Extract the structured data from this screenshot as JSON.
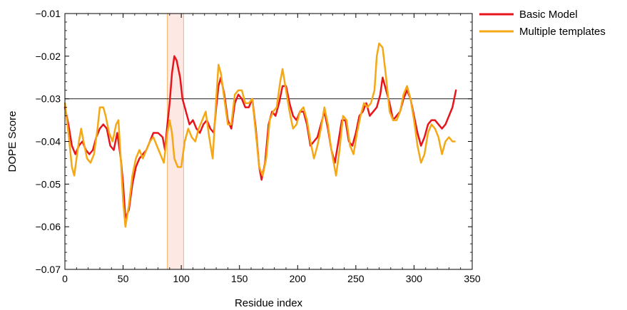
{
  "chart_data": {
    "type": "line",
    "title": "",
    "xlabel": "Residue index",
    "ylabel": "DOPE Score",
    "xlim": [
      0,
      350
    ],
    "ylim": [
      -0.07,
      -0.01
    ],
    "xticks": [
      0,
      50,
      100,
      150,
      200,
      250,
      300,
      350
    ],
    "xtick_labels": [
      "0",
      "50",
      "100",
      "150",
      "200",
      "250",
      "300",
      "350"
    ],
    "yticks": [
      -0.07,
      -0.06,
      -0.05,
      -0.04,
      -0.03,
      -0.02,
      -0.01
    ],
    "ytick_labels": [
      "−0.07",
      "−0.06",
      "−0.05",
      "−0.04",
      "−0.03",
      "−0.02",
      "−0.01"
    ],
    "reference_line": {
      "y": -0.03,
      "color": "#000000"
    },
    "highlight_region": {
      "x": [
        88,
        102
      ],
      "fill": "#fde8e4",
      "stroke": "#f5b56e"
    },
    "legend_position": "top-right outside",
    "series": [
      {
        "name": "Basic Model",
        "color": "#e8141b",
        "points": [
          [
            0,
            -0.032
          ],
          [
            3,
            -0.036
          ],
          [
            6,
            -0.041
          ],
          [
            9,
            -0.043
          ],
          [
            12,
            -0.041
          ],
          [
            15,
            -0.04
          ],
          [
            18,
            -0.042
          ],
          [
            21,
            -0.043
          ],
          [
            24,
            -0.042
          ],
          [
            27,
            -0.039
          ],
          [
            30,
            -0.037
          ],
          [
            33,
            -0.036
          ],
          [
            36,
            -0.037
          ],
          [
            39,
            -0.041
          ],
          [
            42,
            -0.042
          ],
          [
            45,
            -0.038
          ],
          [
            48,
            -0.044
          ],
          [
            50,
            -0.05
          ],
          [
            52,
            -0.058
          ],
          [
            55,
            -0.056
          ],
          [
            58,
            -0.05
          ],
          [
            61,
            -0.046
          ],
          [
            64,
            -0.044
          ],
          [
            67,
            -0.043
          ],
          [
            70,
            -0.042
          ],
          [
            73,
            -0.04
          ],
          [
            76,
            -0.038
          ],
          [
            80,
            -0.038
          ],
          [
            84,
            -0.039
          ],
          [
            86,
            -0.042
          ],
          [
            88,
            -0.036
          ],
          [
            90,
            -0.031
          ],
          [
            92,
            -0.024
          ],
          [
            94,
            -0.02
          ],
          [
            96,
            -0.021
          ],
          [
            99,
            -0.025
          ],
          [
            101,
            -0.03
          ],
          [
            104,
            -0.033
          ],
          [
            107,
            -0.036
          ],
          [
            110,
            -0.035
          ],
          [
            113,
            -0.037
          ],
          [
            116,
            -0.038
          ],
          [
            119,
            -0.036
          ],
          [
            122,
            -0.035
          ],
          [
            125,
            -0.037
          ],
          [
            128,
            -0.038
          ],
          [
            130,
            -0.032
          ],
          [
            132,
            -0.027
          ],
          [
            134,
            -0.025
          ],
          [
            137,
            -0.029
          ],
          [
            140,
            -0.035
          ],
          [
            143,
            -0.037
          ],
          [
            146,
            -0.031
          ],
          [
            149,
            -0.029
          ],
          [
            152,
            -0.03
          ],
          [
            155,
            -0.032
          ],
          [
            158,
            -0.032
          ],
          [
            161,
            -0.03
          ],
          [
            164,
            -0.037
          ],
          [
            167,
            -0.046
          ],
          [
            169,
            -0.049
          ],
          [
            172,
            -0.045
          ],
          [
            175,
            -0.036
          ],
          [
            178,
            -0.033
          ],
          [
            181,
            -0.034
          ],
          [
            184,
            -0.031
          ],
          [
            187,
            -0.027
          ],
          [
            190,
            -0.027
          ],
          [
            193,
            -0.031
          ],
          [
            196,
            -0.034
          ],
          [
            199,
            -0.035
          ],
          [
            202,
            -0.033
          ],
          [
            205,
            -0.033
          ],
          [
            208,
            -0.036
          ],
          [
            211,
            -0.041
          ],
          [
            214,
            -0.04
          ],
          [
            217,
            -0.039
          ],
          [
            220,
            -0.036
          ],
          [
            223,
            -0.033
          ],
          [
            226,
            -0.037
          ],
          [
            229,
            -0.042
          ],
          [
            232,
            -0.045
          ],
          [
            235,
            -0.04
          ],
          [
            238,
            -0.035
          ],
          [
            241,
            -0.035
          ],
          [
            244,
            -0.04
          ],
          [
            247,
            -0.041
          ],
          [
            250,
            -0.038
          ],
          [
            253,
            -0.034
          ],
          [
            256,
            -0.033
          ],
          [
            259,
            -0.031
          ],
          [
            262,
            -0.034
          ],
          [
            265,
            -0.033
          ],
          [
            268,
            -0.032
          ],
          [
            271,
            -0.029
          ],
          [
            273,
            -0.025
          ],
          [
            276,
            -0.028
          ],
          [
            279,
            -0.031
          ],
          [
            282,
            -0.035
          ],
          [
            285,
            -0.034
          ],
          [
            288,
            -0.033
          ],
          [
            291,
            -0.03
          ],
          [
            294,
            -0.028
          ],
          [
            297,
            -0.03
          ],
          [
            300,
            -0.034
          ],
          [
            303,
            -0.038
          ],
          [
            306,
            -0.041
          ],
          [
            309,
            -0.039
          ],
          [
            312,
            -0.036
          ],
          [
            315,
            -0.035
          ],
          [
            318,
            -0.035
          ],
          [
            321,
            -0.036
          ],
          [
            324,
            -0.037
          ],
          [
            327,
            -0.036
          ],
          [
            330,
            -0.034
          ],
          [
            333,
            -0.032
          ],
          [
            336,
            -0.028
          ]
        ]
      },
      {
        "name": "Multiple templates",
        "color": "#f4a815",
        "points": [
          [
            0,
            -0.031
          ],
          [
            3,
            -0.038
          ],
          [
            6,
            -0.046
          ],
          [
            8,
            -0.048
          ],
          [
            10,
            -0.044
          ],
          [
            12,
            -0.04
          ],
          [
            14,
            -0.037
          ],
          [
            16,
            -0.04
          ],
          [
            19,
            -0.044
          ],
          [
            22,
            -0.045
          ],
          [
            25,
            -0.043
          ],
          [
            28,
            -0.037
          ],
          [
            30,
            -0.032
          ],
          [
            33,
            -0.032
          ],
          [
            35,
            -0.034
          ],
          [
            38,
            -0.038
          ],
          [
            41,
            -0.04
          ],
          [
            44,
            -0.036
          ],
          [
            46,
            -0.035
          ],
          [
            48,
            -0.044
          ],
          [
            50,
            -0.054
          ],
          [
            52,
            -0.06
          ],
          [
            55,
            -0.055
          ],
          [
            58,
            -0.048
          ],
          [
            61,
            -0.044
          ],
          [
            64,
            -0.042
          ],
          [
            67,
            -0.044
          ],
          [
            70,
            -0.042
          ],
          [
            73,
            -0.04
          ],
          [
            76,
            -0.039
          ],
          [
            79,
            -0.041
          ],
          [
            82,
            -0.043
          ],
          [
            85,
            -0.045
          ],
          [
            88,
            -0.038
          ],
          [
            90,
            -0.035
          ],
          [
            92,
            -0.038
          ],
          [
            94,
            -0.044
          ],
          [
            97,
            -0.046
          ],
          [
            100,
            -0.046
          ],
          [
            103,
            -0.04
          ],
          [
            106,
            -0.037
          ],
          [
            109,
            -0.039
          ],
          [
            112,
            -0.04
          ],
          [
            115,
            -0.037
          ],
          [
            118,
            -0.035
          ],
          [
            121,
            -0.033
          ],
          [
            124,
            -0.039
          ],
          [
            127,
            -0.044
          ],
          [
            130,
            -0.03
          ],
          [
            132,
            -0.022
          ],
          [
            134,
            -0.024
          ],
          [
            137,
            -0.03
          ],
          [
            140,
            -0.036
          ],
          [
            143,
            -0.036
          ],
          [
            146,
            -0.029
          ],
          [
            149,
            -0.028
          ],
          [
            152,
            -0.028
          ],
          [
            155,
            -0.031
          ],
          [
            158,
            -0.031
          ],
          [
            161,
            -0.03
          ],
          [
            164,
            -0.038
          ],
          [
            167,
            -0.046
          ],
          [
            170,
            -0.048
          ],
          [
            173,
            -0.044
          ],
          [
            176,
            -0.035
          ],
          [
            179,
            -0.033
          ],
          [
            182,
            -0.032
          ],
          [
            185,
            -0.026
          ],
          [
            187,
            -0.023
          ],
          [
            190,
            -0.028
          ],
          [
            193,
            -0.033
          ],
          [
            196,
            -0.037
          ],
          [
            199,
            -0.036
          ],
          [
            202,
            -0.033
          ],
          [
            205,
            -0.032
          ],
          [
            208,
            -0.035
          ],
          [
            211,
            -0.04
          ],
          [
            214,
            -0.044
          ],
          [
            217,
            -0.041
          ],
          [
            220,
            -0.037
          ],
          [
            223,
            -0.032
          ],
          [
            226,
            -0.036
          ],
          [
            229,
            -0.042
          ],
          [
            233,
            -0.048
          ],
          [
            236,
            -0.042
          ],
          [
            239,
            -0.034
          ],
          [
            242,
            -0.035
          ],
          [
            245,
            -0.041
          ],
          [
            248,
            -0.043
          ],
          [
            251,
            -0.038
          ],
          [
            254,
            -0.034
          ],
          [
            257,
            -0.031
          ],
          [
            260,
            -0.032
          ],
          [
            263,
            -0.031
          ],
          [
            266,
            -0.028
          ],
          [
            268,
            -0.02
          ],
          [
            270,
            -0.017
          ],
          [
            273,
            -0.018
          ],
          [
            276,
            -0.025
          ],
          [
            279,
            -0.033
          ],
          [
            282,
            -0.035
          ],
          [
            285,
            -0.035
          ],
          [
            288,
            -0.033
          ],
          [
            291,
            -0.029
          ],
          [
            294,
            -0.027
          ],
          [
            297,
            -0.03
          ],
          [
            300,
            -0.035
          ],
          [
            303,
            -0.041
          ],
          [
            306,
            -0.045
          ],
          [
            309,
            -0.043
          ],
          [
            312,
            -0.038
          ],
          [
            315,
            -0.036
          ],
          [
            318,
            -0.037
          ],
          [
            321,
            -0.039
          ],
          [
            324,
            -0.043
          ],
          [
            327,
            -0.04
          ],
          [
            330,
            -0.039
          ],
          [
            333,
            -0.04
          ],
          [
            335,
            -0.04
          ]
        ]
      }
    ]
  }
}
